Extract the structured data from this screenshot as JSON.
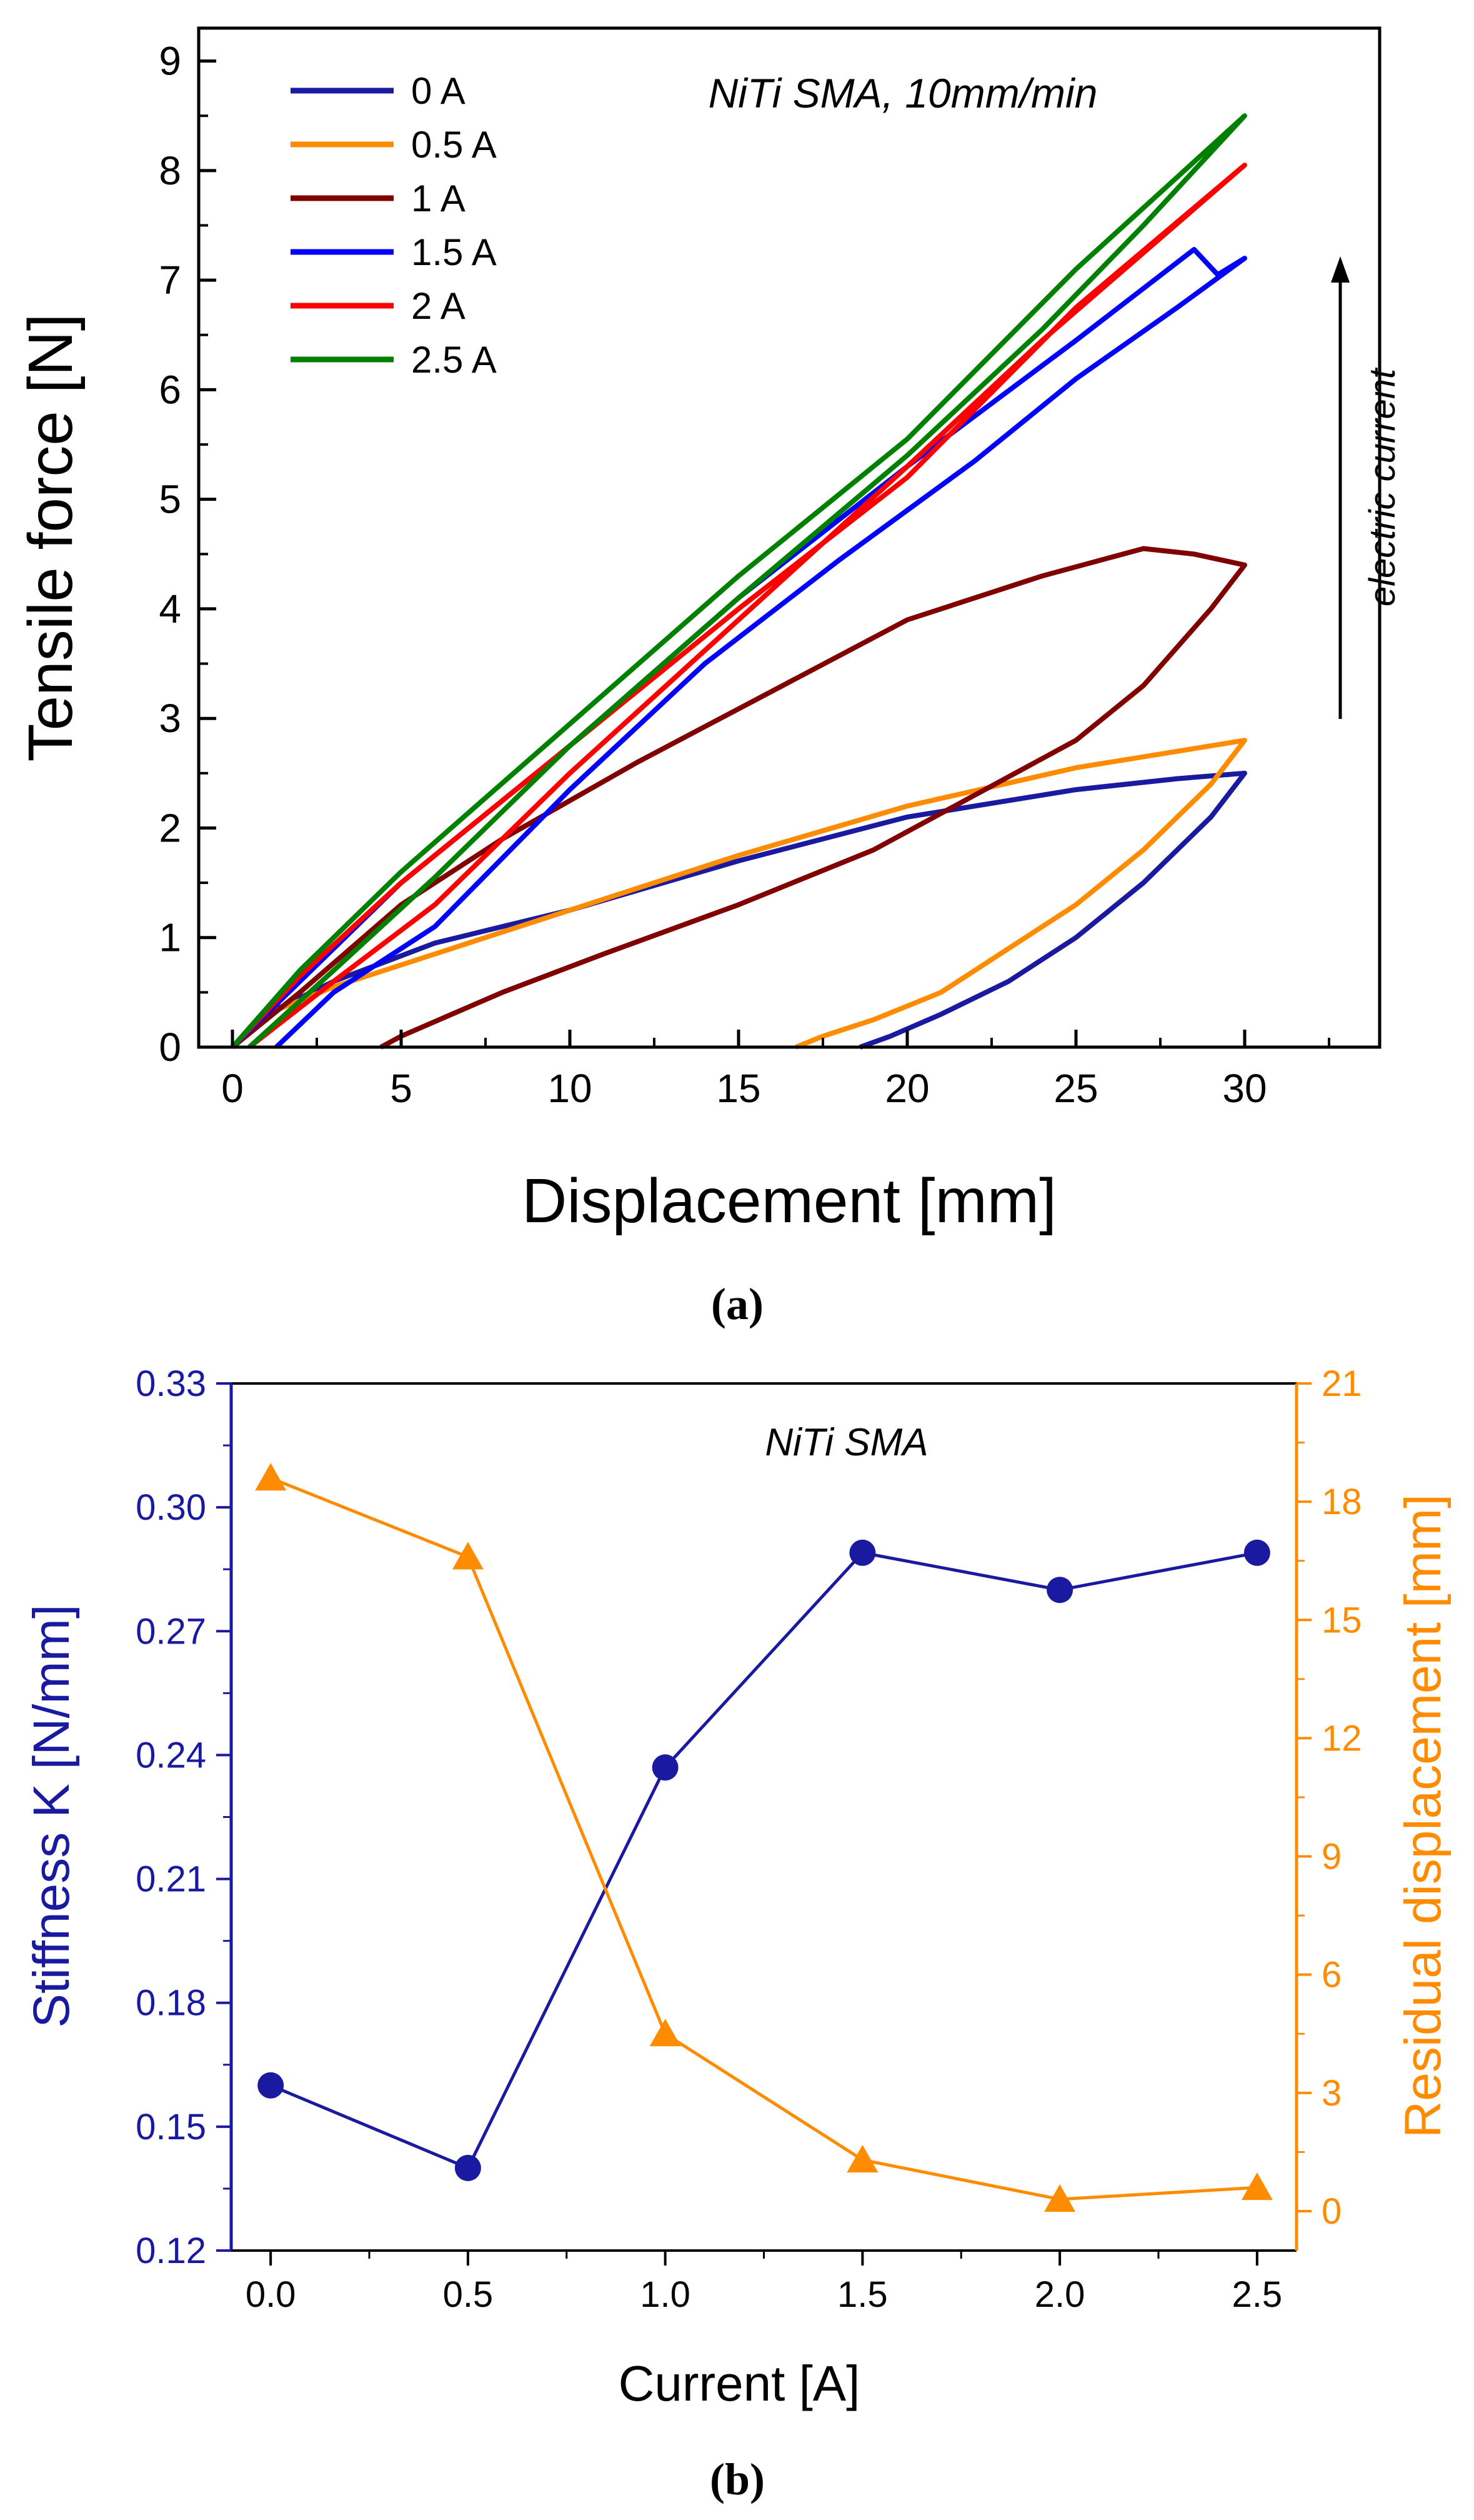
{
  "chart_data": [
    {
      "type": "line",
      "panel_label": "(a)",
      "xlabel": "Displacement [mm]",
      "ylabel": "Tensile force [N]",
      "xlim": [
        -1,
        34
      ],
      "ylim": [
        0,
        9.3
      ],
      "xticks": [
        0,
        5,
        10,
        15,
        20,
        25,
        30
      ],
      "xtick_labels": [
        "0",
        "5",
        "10",
        "15",
        "20",
        "25",
        "30"
      ],
      "yticks": [
        0,
        1,
        2,
        3,
        4,
        5,
        6,
        7,
        8,
        9
      ],
      "ytick_labels": [
        "0",
        "1",
        "2",
        "3",
        "4",
        "5",
        "6",
        "7",
        "8",
        "9"
      ],
      "annotation": "NiTi SMA, 10mm/min",
      "arrow_label": "electric current",
      "legend_position": "top-left",
      "series": [
        {
          "name": "0 A",
          "color": "#1a1aa0",
          "loading": [
            [
              0,
              0
            ],
            [
              1,
              0.3
            ],
            [
              3,
              0.6
            ],
            [
              6,
              0.95
            ],
            [
              10,
              1.25
            ],
            [
              15,
              1.7
            ],
            [
              20,
              2.1
            ],
            [
              25,
              2.35
            ],
            [
              28,
              2.45
            ],
            [
              30,
              2.5
            ]
          ],
          "unloading": [
            [
              30,
              2.5
            ],
            [
              29,
              2.1
            ],
            [
              27,
              1.5
            ],
            [
              25,
              1.0
            ],
            [
              23,
              0.6
            ],
            [
              21,
              0.3
            ],
            [
              19.5,
              0.1
            ],
            [
              18.6,
              0
            ]
          ]
        },
        {
          "name": "0.5 A",
          "color": "#ff8c00",
          "loading": [
            [
              0,
              0
            ],
            [
              1,
              0.3
            ],
            [
              3,
              0.55
            ],
            [
              6,
              0.85
            ],
            [
              10,
              1.25
            ],
            [
              15,
              1.75
            ],
            [
              20,
              2.2
            ],
            [
              25,
              2.55
            ],
            [
              28,
              2.7
            ],
            [
              30,
              2.8
            ]
          ],
          "unloading": [
            [
              30,
              2.8
            ],
            [
              29,
              2.4
            ],
            [
              27,
              1.8
            ],
            [
              25,
              1.3
            ],
            [
              23,
              0.9
            ],
            [
              21,
              0.5
            ],
            [
              19,
              0.25
            ],
            [
              17.5,
              0.1
            ],
            [
              16.7,
              0
            ]
          ]
        },
        {
          "name": "1 A",
          "color": "#800000",
          "loading": [
            [
              0,
              0
            ],
            [
              2,
              0.5
            ],
            [
              5,
              1.3
            ],
            [
              8,
              1.9
            ],
            [
              12,
              2.6
            ],
            [
              16,
              3.25
            ],
            [
              20,
              3.9
            ],
            [
              24,
              4.3
            ],
            [
              27,
              4.55
            ],
            [
              28.5,
              4.5
            ],
            [
              30,
              4.4
            ]
          ],
          "unloading": [
            [
              30,
              4.4
            ],
            [
              29,
              4.0
            ],
            [
              27,
              3.3
            ],
            [
              25,
              2.8
            ],
            [
              22,
              2.3
            ],
            [
              19,
              1.8
            ],
            [
              15,
              1.3
            ],
            [
              11,
              0.85
            ],
            [
              8,
              0.5
            ],
            [
              5,
              0.1
            ],
            [
              4.4,
              0
            ]
          ]
        },
        {
          "name": "1.5 A",
          "color": "#0000ff",
          "loading": [
            [
              0,
              0
            ],
            [
              2,
              0.6
            ],
            [
              5,
              1.5
            ],
            [
              10,
              2.75
            ],
            [
              15,
              4.1
            ],
            [
              20,
              5.3
            ],
            [
              25,
              6.45
            ],
            [
              28.5,
              7.28
            ],
            [
              29.2,
              7.05
            ],
            [
              30,
              7.2
            ]
          ],
          "unloading": [
            [
              30,
              7.2
            ],
            [
              28,
              6.75
            ],
            [
              25,
              6.1
            ],
            [
              22,
              5.35
            ],
            [
              18,
              4.45
            ],
            [
              14,
              3.5
            ],
            [
              10,
              2.35
            ],
            [
              6,
              1.1
            ],
            [
              3,
              0.5
            ],
            [
              1.3,
              0
            ]
          ]
        },
        {
          "name": "2 A",
          "color": "#ff0000",
          "loading": [
            [
              0,
              0
            ],
            [
              2,
              0.65
            ],
            [
              5,
              1.5
            ],
            [
              10,
              2.75
            ],
            [
              15,
              4.0
            ],
            [
              20,
              5.2
            ],
            [
              25,
              6.75
            ],
            [
              30,
              8.05
            ]
          ],
          "unloading": [
            [
              30,
              8.05
            ],
            [
              27,
              7.25
            ],
            [
              24,
              6.45
            ],
            [
              20,
              5.3
            ],
            [
              15,
              3.9
            ],
            [
              10,
              2.5
            ],
            [
              6,
              1.3
            ],
            [
              3,
              0.6
            ],
            [
              0.5,
              0
            ]
          ]
        },
        {
          "name": "2.5 A",
          "color": "#008000",
          "loading": [
            [
              0,
              0
            ],
            [
              2,
              0.7
            ],
            [
              5,
              1.6
            ],
            [
              10,
              2.95
            ],
            [
              15,
              4.3
            ],
            [
              20,
              5.55
            ],
            [
              25,
              7.1
            ],
            [
              30,
              8.5
            ]
          ],
          "unloading": [
            [
              30,
              8.5
            ],
            [
              27,
              7.5
            ],
            [
              24,
              6.55
            ],
            [
              20,
              5.4
            ],
            [
              15,
              4.1
            ],
            [
              10,
              2.75
            ],
            [
              6,
              1.55
            ],
            [
              3,
              0.7
            ],
            [
              0.5,
              0
            ]
          ]
        }
      ]
    },
    {
      "type": "line",
      "panel_label": "(b)",
      "title": "NiTi SMA",
      "xlabel": "Current [A]",
      "ylabel_left": "Stiffness K [N/mm]",
      "ylabel_right": "Residual displacement [mm]",
      "x": [
        0.0,
        0.5,
        1.0,
        1.5,
        2.0,
        2.5
      ],
      "xlim": [
        -0.1,
        2.6
      ],
      "xticks": [
        0.0,
        0.5,
        1.0,
        1.5,
        2.0,
        2.5
      ],
      "xtick_labels": [
        "0.0",
        "0.5",
        "1.0",
        "1.5",
        "2.0",
        "2.5"
      ],
      "ylim_left": [
        0.12,
        0.33
      ],
      "yticks_left": [
        0.12,
        0.15,
        0.18,
        0.21,
        0.24,
        0.27,
        0.3,
        0.33
      ],
      "ytick_labels_left": [
        "0.12",
        "0.15",
        "0.18",
        "0.21",
        "0.24",
        "0.27",
        "0.30",
        "0.33"
      ],
      "ylim_right": [
        -1,
        21
      ],
      "yticks_right": [
        0,
        3,
        6,
        9,
        12,
        15,
        18,
        21
      ],
      "ytick_labels_right": [
        "0",
        "3",
        "6",
        "9",
        "12",
        "15",
        "18",
        "21"
      ],
      "series": [
        {
          "name": "Stiffness K",
          "axis": "left",
          "marker": "circle",
          "color": "#1a1aa0",
          "values": [
            0.16,
            0.14,
            0.237,
            0.289,
            0.28,
            0.289
          ]
        },
        {
          "name": "Residual displacement",
          "axis": "right",
          "marker": "triangle",
          "color": "#ff8c00",
          "values": [
            18.6,
            16.6,
            4.5,
            1.3,
            0.3,
            0.6
          ]
        }
      ]
    }
  ]
}
